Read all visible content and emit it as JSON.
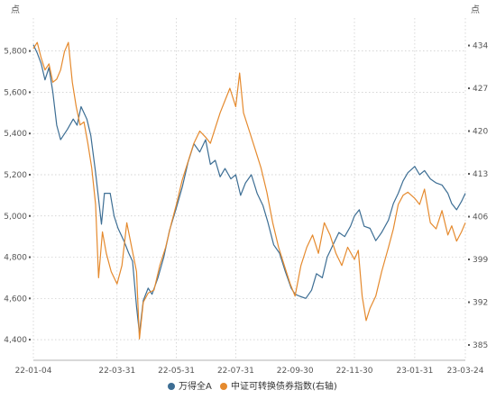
{
  "chart_data": {
    "type": "line",
    "title": "",
    "left_axis": {
      "unit": "点",
      "ylim": [
        4300,
        5960
      ],
      "ticks": [
        4400,
        4600,
        4800,
        5000,
        5200,
        5400,
        5600,
        5800
      ],
      "tick_labels": [
        "4,400",
        "4,600",
        "4,800",
        "5,000",
        "5,200",
        "5,400",
        "5,600",
        "5,800"
      ]
    },
    "right_axis": {
      "unit": "点",
      "ylim": [
        382.5,
        438.5
      ],
      "ticks": [
        385,
        392,
        399,
        406,
        413,
        420,
        427,
        434
      ],
      "tick_labels": [
        "385",
        "392",
        "399",
        "406",
        "413",
        "420",
        "427",
        "434"
      ]
    },
    "x_axis": {
      "start": "2022-01-04",
      "end": "2023-03-24",
      "ticks": [
        {
          "date": "2022-01-04",
          "label": "22-01-04"
        },
        {
          "date": "2022-03-31",
          "label": "22-03-31"
        },
        {
          "date": "2022-05-31",
          "label": "22-05-31"
        },
        {
          "date": "2022-07-31",
          "label": "22-07-31"
        },
        {
          "date": "2022-09-30",
          "label": "22-09-30"
        },
        {
          "date": "2022-11-30",
          "label": "22-11-30"
        },
        {
          "date": "2023-01-31",
          "label": "23-01-31"
        },
        {
          "date": "2023-03-24",
          "label": "23-03-24"
        }
      ]
    },
    "grid": true,
    "legend_position": "bottom",
    "series": [
      {
        "name": "万得全A",
        "axis": "left",
        "color": "#3d6e94",
        "points": [
          [
            "2022-01-04",
            5830
          ],
          [
            "2022-01-08",
            5790
          ],
          [
            "2022-01-12",
            5740
          ],
          [
            "2022-01-16",
            5660
          ],
          [
            "2022-01-20",
            5720
          ],
          [
            "2022-01-24",
            5600
          ],
          [
            "2022-01-28",
            5440
          ],
          [
            "2022-02-01",
            5370
          ],
          [
            "2022-02-08",
            5420
          ],
          [
            "2022-02-14",
            5470
          ],
          [
            "2022-02-18",
            5440
          ],
          [
            "2022-02-22",
            5530
          ],
          [
            "2022-02-28",
            5470
          ],
          [
            "2022-03-04",
            5390
          ],
          [
            "2022-03-09",
            5210
          ],
          [
            "2022-03-15",
            4960
          ],
          [
            "2022-03-18",
            5110
          ],
          [
            "2022-03-24",
            5110
          ],
          [
            "2022-03-28",
            5000
          ],
          [
            "2022-04-01",
            4940
          ],
          [
            "2022-04-07",
            4880
          ],
          [
            "2022-04-12",
            4820
          ],
          [
            "2022-04-16",
            4780
          ],
          [
            "2022-04-20",
            4560
          ],
          [
            "2022-04-23",
            4430
          ],
          [
            "2022-04-27",
            4590
          ],
          [
            "2022-05-02",
            4650
          ],
          [
            "2022-05-06",
            4620
          ],
          [
            "2022-05-12",
            4700
          ],
          [
            "2022-05-18",
            4800
          ],
          [
            "2022-05-24",
            4930
          ],
          [
            "2022-05-31",
            5040
          ],
          [
            "2022-06-06",
            5140
          ],
          [
            "2022-06-12",
            5260
          ],
          [
            "2022-06-18",
            5350
          ],
          [
            "2022-06-24",
            5310
          ],
          [
            "2022-06-30",
            5370
          ],
          [
            "2022-07-05",
            5250
          ],
          [
            "2022-07-10",
            5270
          ],
          [
            "2022-07-15",
            5190
          ],
          [
            "2022-07-20",
            5230
          ],
          [
            "2022-07-26",
            5180
          ],
          [
            "2022-07-31",
            5200
          ],
          [
            "2022-08-05",
            5100
          ],
          [
            "2022-08-10",
            5160
          ],
          [
            "2022-08-16",
            5200
          ],
          [
            "2022-08-22",
            5110
          ],
          [
            "2022-08-28",
            5050
          ],
          [
            "2022-09-02",
            4970
          ],
          [
            "2022-09-08",
            4860
          ],
          [
            "2022-09-14",
            4820
          ],
          [
            "2022-09-20",
            4730
          ],
          [
            "2022-09-26",
            4650
          ],
          [
            "2022-09-30",
            4620
          ],
          [
            "2022-10-05",
            4610
          ],
          [
            "2022-10-11",
            4600
          ],
          [
            "2022-10-17",
            4640
          ],
          [
            "2022-10-22",
            4720
          ],
          [
            "2022-10-28",
            4700
          ],
          [
            "2022-11-02",
            4800
          ],
          [
            "2022-11-08",
            4860
          ],
          [
            "2022-11-14",
            4920
          ],
          [
            "2022-11-20",
            4900
          ],
          [
            "2022-11-26",
            4950
          ],
          [
            "2022-11-30",
            5000
          ],
          [
            "2022-12-05",
            5030
          ],
          [
            "2022-12-10",
            4950
          ],
          [
            "2022-12-16",
            4940
          ],
          [
            "2022-12-22",
            4880
          ],
          [
            "2022-12-28",
            4920
          ],
          [
            "2023-01-04",
            4980
          ],
          [
            "2023-01-09",
            5060
          ],
          [
            "2023-01-14",
            5110
          ],
          [
            "2023-01-19",
            5170
          ],
          [
            "2023-01-24",
            5210
          ],
          [
            "2023-01-31",
            5240
          ],
          [
            "2023-02-05",
            5200
          ],
          [
            "2023-02-10",
            5220
          ],
          [
            "2023-02-16",
            5180
          ],
          [
            "2023-02-22",
            5160
          ],
          [
            "2023-02-28",
            5150
          ],
          [
            "2023-03-06",
            5110
          ],
          [
            "2023-03-10",
            5060
          ],
          [
            "2023-03-15",
            5030
          ],
          [
            "2023-03-20",
            5070
          ],
          [
            "2023-03-24",
            5110
          ]
        ]
      },
      {
        "name": "中证可转换债券指数(右轴)",
        "axis": "right",
        "color": "#e58a2e",
        "points": [
          [
            "2022-01-04",
            433.5
          ],
          [
            "2022-01-08",
            434.5
          ],
          [
            "2022-01-12",
            432.0
          ],
          [
            "2022-01-16",
            430.0
          ],
          [
            "2022-01-20",
            431.0
          ],
          [
            "2022-01-24",
            428.0
          ],
          [
            "2022-01-28",
            428.5
          ],
          [
            "2022-02-01",
            430.0
          ],
          [
            "2022-02-05",
            433.0
          ],
          [
            "2022-02-09",
            434.5
          ],
          [
            "2022-02-13",
            428.0
          ],
          [
            "2022-02-17",
            424.0
          ],
          [
            "2022-02-21",
            421.0
          ],
          [
            "2022-02-25",
            421.5
          ],
          [
            "2022-03-01",
            418.0
          ],
          [
            "2022-03-05",
            414.0
          ],
          [
            "2022-03-09",
            408.0
          ],
          [
            "2022-03-12",
            396.0
          ],
          [
            "2022-03-16",
            403.5
          ],
          [
            "2022-03-20",
            400.0
          ],
          [
            "2022-03-25",
            397.0
          ],
          [
            "2022-03-31",
            395.0
          ],
          [
            "2022-04-05",
            398.0
          ],
          [
            "2022-04-10",
            405.0
          ],
          [
            "2022-04-15",
            401.0
          ],
          [
            "2022-04-20",
            397.0
          ],
          [
            "2022-04-23",
            386.0
          ],
          [
            "2022-04-27",
            392.0
          ],
          [
            "2022-05-02",
            393.5
          ],
          [
            "2022-05-08",
            394.0
          ],
          [
            "2022-05-14",
            398.0
          ],
          [
            "2022-05-20",
            401.0
          ],
          [
            "2022-05-26",
            405.0
          ],
          [
            "2022-05-31",
            408.0
          ],
          [
            "2022-06-06",
            412.0
          ],
          [
            "2022-06-12",
            415.0
          ],
          [
            "2022-06-18",
            418.0
          ],
          [
            "2022-06-24",
            420.0
          ],
          [
            "2022-06-30",
            419.0
          ],
          [
            "2022-07-05",
            418.0
          ],
          [
            "2022-07-10",
            420.5
          ],
          [
            "2022-07-15",
            423.0
          ],
          [
            "2022-07-20",
            425.0
          ],
          [
            "2022-07-25",
            427.0
          ],
          [
            "2022-07-31",
            424.0
          ],
          [
            "2022-08-04",
            429.5
          ],
          [
            "2022-08-08",
            423.0
          ],
          [
            "2022-08-14",
            420.0
          ],
          [
            "2022-08-20",
            417.0
          ],
          [
            "2022-08-26",
            414.0
          ],
          [
            "2022-09-01",
            410.0
          ],
          [
            "2022-09-07",
            405.0
          ],
          [
            "2022-09-13",
            401.0
          ],
          [
            "2022-09-19",
            398.0
          ],
          [
            "2022-09-25",
            395.0
          ],
          [
            "2022-09-30",
            393.0
          ],
          [
            "2022-10-06",
            398.0
          ],
          [
            "2022-10-12",
            401.0
          ],
          [
            "2022-10-18",
            403.0
          ],
          [
            "2022-10-24",
            400.0
          ],
          [
            "2022-10-30",
            405.0
          ],
          [
            "2022-11-05",
            403.0
          ],
          [
            "2022-11-11",
            400.0
          ],
          [
            "2022-11-17",
            398.0
          ],
          [
            "2022-11-23",
            401.0
          ],
          [
            "2022-11-30",
            399.0
          ],
          [
            "2022-12-04",
            400.5
          ],
          [
            "2022-12-08",
            393.0
          ],
          [
            "2022-12-12",
            389.0
          ],
          [
            "2022-12-16",
            391.0
          ],
          [
            "2022-12-22",
            393.0
          ],
          [
            "2022-12-28",
            397.0
          ],
          [
            "2023-01-04",
            401.0
          ],
          [
            "2023-01-09",
            404.0
          ],
          [
            "2023-01-14",
            408.0
          ],
          [
            "2023-01-19",
            409.5
          ],
          [
            "2023-01-24",
            410.0
          ],
          [
            "2023-01-31",
            409.0
          ],
          [
            "2023-02-05",
            408.0
          ],
          [
            "2023-02-10",
            410.5
          ],
          [
            "2023-02-16",
            405.0
          ],
          [
            "2023-02-22",
            404.0
          ],
          [
            "2023-02-28",
            407.0
          ],
          [
            "2023-03-06",
            403.0
          ],
          [
            "2023-03-10",
            404.5
          ],
          [
            "2023-03-15",
            402.0
          ],
          [
            "2023-03-20",
            403.5
          ],
          [
            "2023-03-24",
            405.0
          ]
        ]
      }
    ]
  }
}
